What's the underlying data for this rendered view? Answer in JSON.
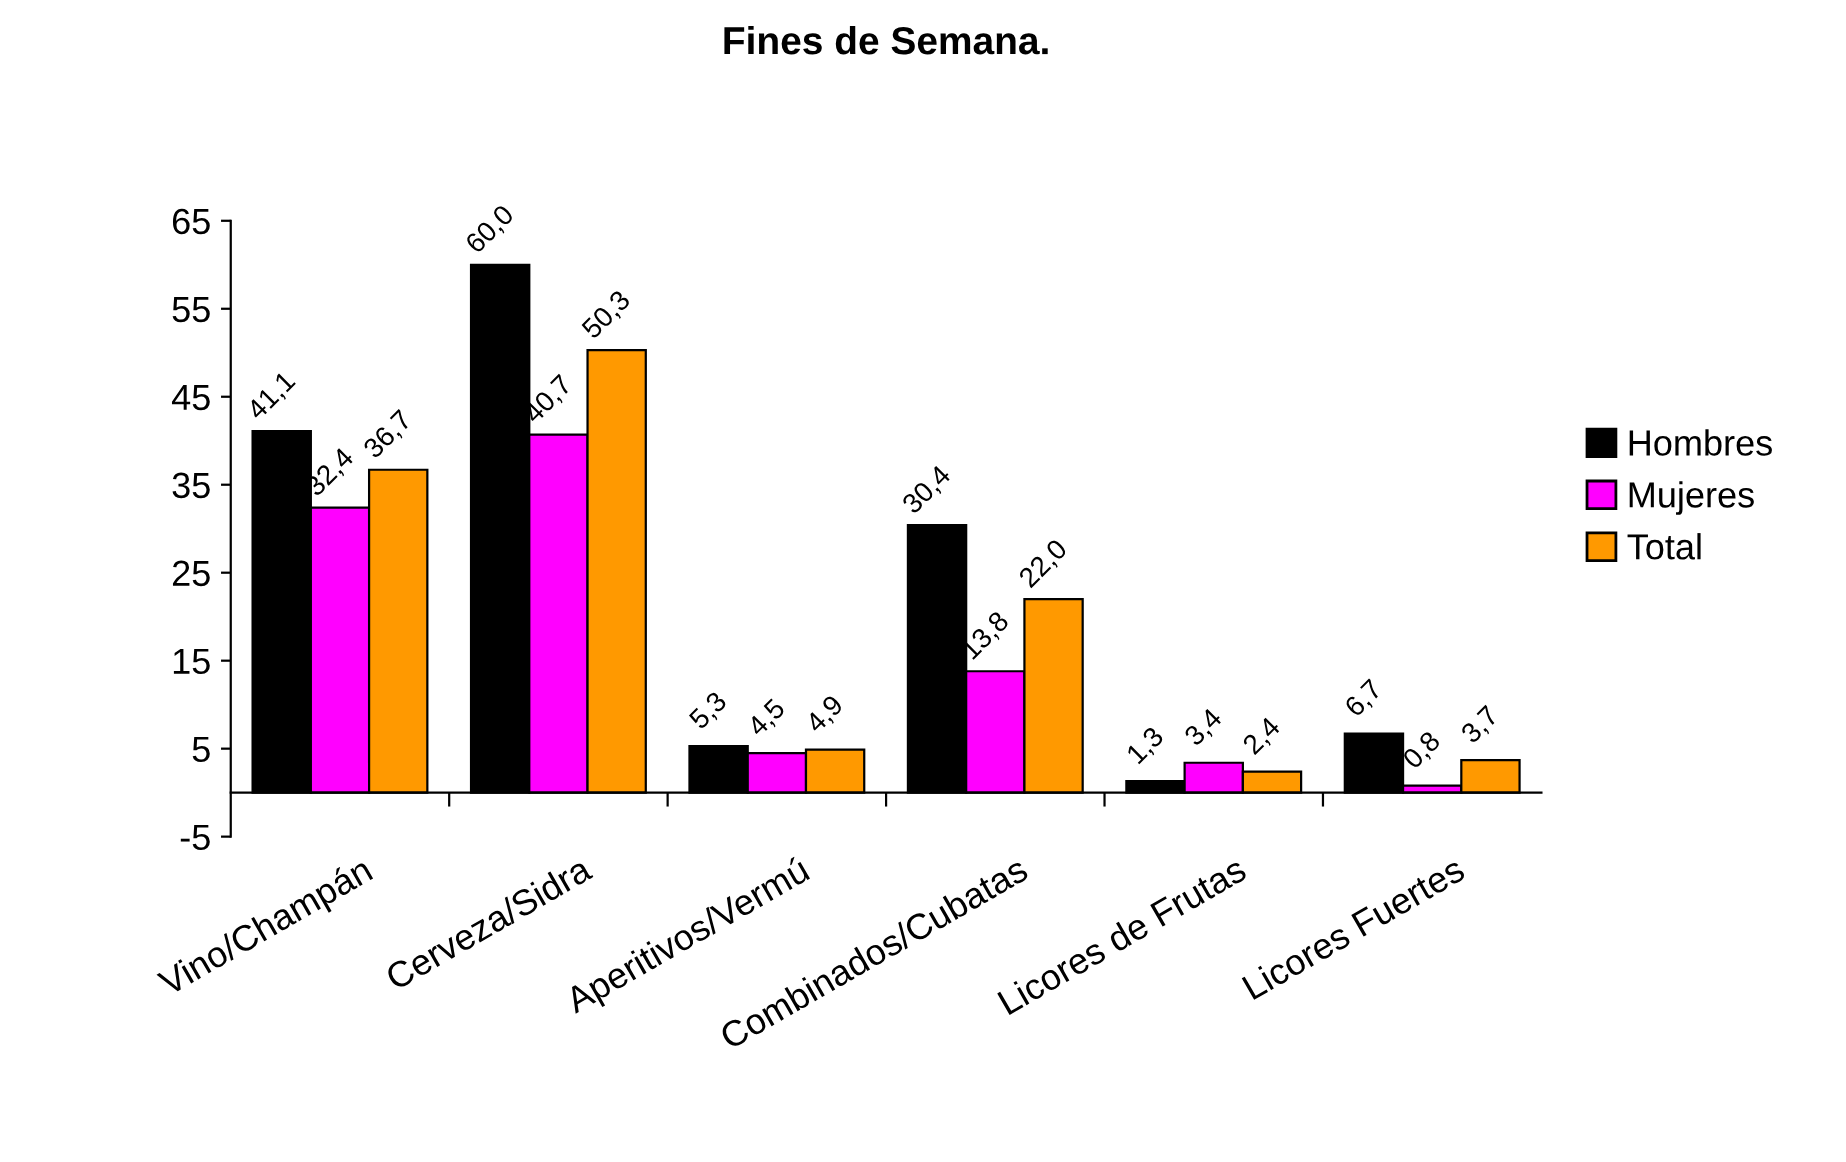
{
  "chart_data": {
    "type": "bar",
    "title": "Fines de Semana.",
    "categories": [
      "Vino/Champán",
      "Cerveza/Sidra",
      "Aperitivos/Vermú",
      "Combinados/Cubatas",
      "Licores de Frutas",
      "Licores Fuertes"
    ],
    "series": [
      {
        "name": "Hombres",
        "color": "#000000",
        "values": [
          41.1,
          60.0,
          5.3,
          30.4,
          1.3,
          6.7
        ],
        "value_labels": [
          "41,1",
          "60,0",
          "5,3",
          "30,4",
          "1,3",
          "6,7"
        ]
      },
      {
        "name": "Mujeres",
        "color": "#ff00ff",
        "values": [
          32.4,
          40.7,
          4.5,
          13.8,
          3.4,
          0.8
        ],
        "value_labels": [
          "32,4",
          "40,7",
          "4,5",
          "13,8",
          "3,4",
          "0,8"
        ]
      },
      {
        "name": "Total",
        "color": "#ff9900",
        "values": [
          36.7,
          50.3,
          4.9,
          22.0,
          2.4,
          3.7
        ],
        "value_labels": [
          "36,7",
          "50,3",
          "4,9",
          "22,0",
          "2,4",
          "3,7"
        ]
      }
    ],
    "ylim": [
      -5,
      65
    ],
    "yticks": [
      -5,
      5,
      15,
      25,
      35,
      45,
      55,
      65
    ],
    "grid": false,
    "legend": "right"
  }
}
